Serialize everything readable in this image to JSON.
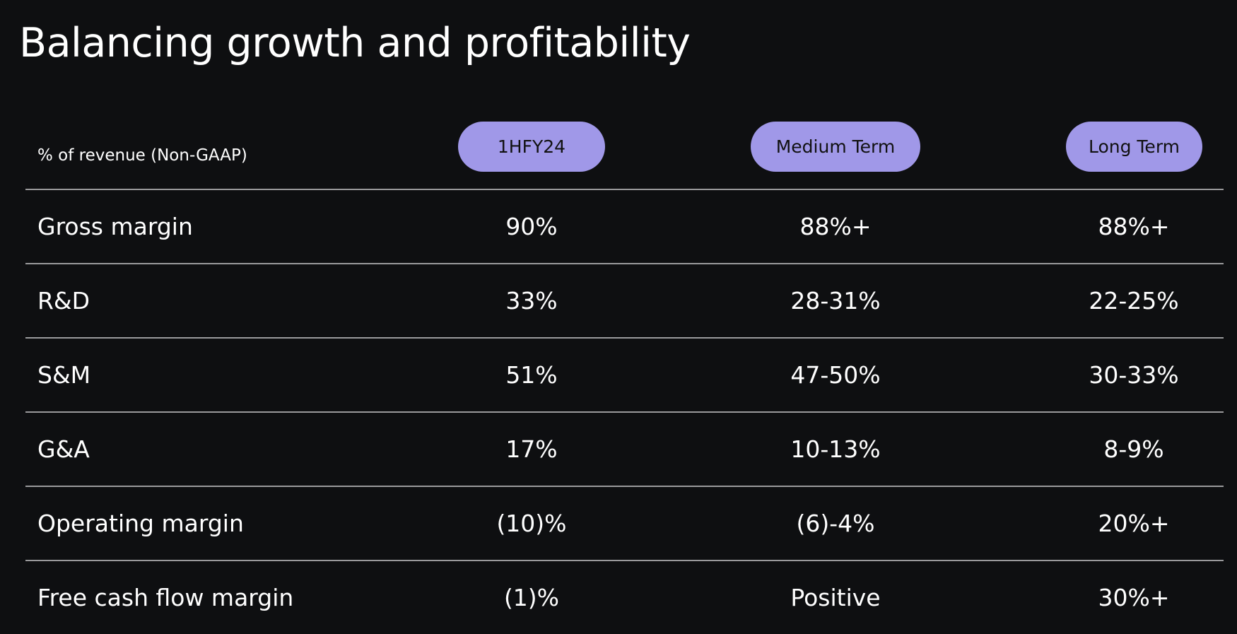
{
  "title": "Balancing growth and profitability",
  "table": {
    "header_label": "% of revenue (Non-GAAP)",
    "columns": [
      "1HFY24",
      "Medium Term",
      "Long Term"
    ],
    "rows": [
      {
        "label": "Gross margin",
        "values": [
          "90%",
          "88%+",
          "88%+"
        ]
      },
      {
        "label": "R&D",
        "values": [
          "33%",
          "28-31%",
          "22-25%"
        ]
      },
      {
        "label": "S&M",
        "values": [
          "51%",
          "47-50%",
          "30-33%"
        ]
      },
      {
        "label": "G&A",
        "values": [
          "17%",
          "10-13%",
          "8-9%"
        ]
      },
      {
        "label": "Operating margin",
        "values": [
          "(10)%",
          "(6)-4%",
          "20%+"
        ]
      },
      {
        "label": "Free cash flow margin",
        "values": [
          "(1)%",
          "Positive",
          "30%+"
        ]
      }
    ]
  },
  "colors": {
    "background": "#0e0f11",
    "pill": "#a098e8",
    "divider": "#9a9a9c",
    "text": "#ffffff"
  }
}
